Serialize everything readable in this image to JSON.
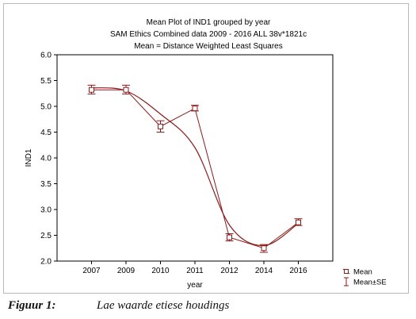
{
  "chart_data": {
    "type": "line",
    "title_lines": [
      "Mean Plot of IND1 grouped by  year",
      "SAM Ethics Combined data 2009 - 2016 ALL 38v*1821c",
      "Mean = Distance Weighted Least Squares"
    ],
    "xlabel": "year",
    "ylabel": "IND1",
    "categories": [
      "2007",
      "2009",
      "2010",
      "2011",
      "2012",
      "2014",
      "2016"
    ],
    "ylim": [
      2.0,
      6.0
    ],
    "yticks": [
      "2.0",
      "2.5",
      "3.0",
      "3.5",
      "4.0",
      "4.5",
      "5.0",
      "5.5",
      "6.0"
    ],
    "series": [
      {
        "name": "Mean",
        "values": [
          5.32,
          5.32,
          4.61,
          4.96,
          2.46,
          2.25,
          2.75
        ],
        "se_low": [
          5.24,
          5.24,
          4.5,
          4.91,
          2.39,
          2.17,
          2.69
        ],
        "se_high": [
          5.41,
          5.41,
          4.72,
          5.02,
          2.53,
          2.32,
          2.82
        ]
      }
    ],
    "smooth_curve": [
      5.36,
      5.3,
      4.85,
      4.2,
      2.7,
      2.3,
      2.73
    ],
    "legend": {
      "placement": "bottom-right",
      "items": [
        "Mean",
        "Mean±SE"
      ]
    },
    "colors": {
      "series": "#8b1a1a",
      "axis": "#000000",
      "frame": "#b8b8b8"
    },
    "grid": false
  },
  "caption": {
    "label": "Figuur 1:",
    "text": "Lae waarde etiese houdings"
  }
}
